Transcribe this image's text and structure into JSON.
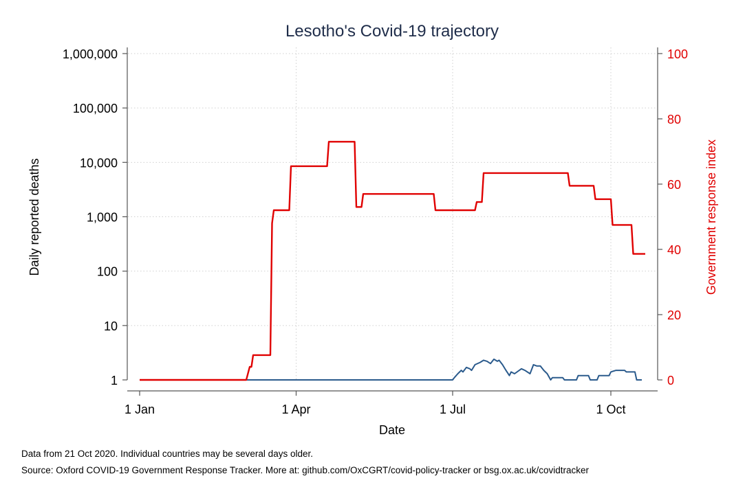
{
  "chart_data": {
    "type": "line",
    "title": "Lesotho's Covid-19 trajectory",
    "xlabel": "Date",
    "ylabel_left": "Daily reported deaths",
    "ylabel_right": "Government response index",
    "x_ticks": [
      {
        "day": 0,
        "label": "1 Jan"
      },
      {
        "day": 91,
        "label": "1 Apr"
      },
      {
        "day": 182,
        "label": "1 Jul"
      },
      {
        "day": 274,
        "label": "1 Oct"
      }
    ],
    "x_range_days": [
      0,
      294
    ],
    "left_axis": {
      "scale": "log10",
      "range": [
        1,
        1000000
      ],
      "ticks": [
        {
          "value": 1,
          "label": "1"
        },
        {
          "value": 10,
          "label": "10"
        },
        {
          "value": 100,
          "label": "100"
        },
        {
          "value": 1000,
          "label": "1,000"
        },
        {
          "value": 10000,
          "label": "10,000"
        },
        {
          "value": 100000,
          "label": "100,000"
        },
        {
          "value": 1000000,
          "label": "1,000,000"
        }
      ]
    },
    "right_axis": {
      "scale": "linear",
      "range": [
        0,
        100
      ],
      "ticks": [
        {
          "value": 0,
          "label": "0"
        },
        {
          "value": 20,
          "label": "20"
        },
        {
          "value": 40,
          "label": "40"
        },
        {
          "value": 60,
          "label": "60"
        },
        {
          "value": 80,
          "label": "80"
        },
        {
          "value": 100,
          "label": "100"
        }
      ]
    },
    "grid": true,
    "series": [
      {
        "name": "Daily reported deaths",
        "axis": "left",
        "color": "#2a5a8c",
        "points": [
          [
            62,
            1
          ],
          [
            182,
            1
          ],
          [
            183,
            1.1
          ],
          [
            185,
            1.3
          ],
          [
            187,
            1.5
          ],
          [
            188,
            1.4
          ],
          [
            190,
            1.7
          ],
          [
            192,
            1.6
          ],
          [
            193,
            1.5
          ],
          [
            195,
            1.9
          ],
          [
            198,
            2.1
          ],
          [
            200,
            2.3
          ],
          [
            202,
            2.2
          ],
          [
            204,
            2.0
          ],
          [
            206,
            2.4
          ],
          [
            208,
            2.2
          ],
          [
            209,
            2.3
          ],
          [
            211,
            1.9
          ],
          [
            213,
            1.5
          ],
          [
            215,
            1.2
          ],
          [
            216,
            1.4
          ],
          [
            218,
            1.3
          ],
          [
            222,
            1.6
          ],
          [
            224,
            1.5
          ],
          [
            227,
            1.3
          ],
          [
            229,
            1.9
          ],
          [
            231,
            1.8
          ],
          [
            233,
            1.8
          ],
          [
            235,
            1.5
          ],
          [
            237,
            1.3
          ],
          [
            239,
            1.0
          ],
          [
            240,
            1.1
          ],
          [
            246,
            1.1
          ],
          [
            247,
            1.0
          ],
          [
            254,
            1.0
          ],
          [
            255,
            1.2
          ],
          [
            261,
            1.2
          ],
          [
            262,
            1.0
          ],
          [
            266,
            1.0
          ],
          [
            267,
            1.2
          ],
          [
            273,
            1.2
          ],
          [
            274,
            1.4
          ],
          [
            277,
            1.5
          ],
          [
            282,
            1.5
          ],
          [
            283,
            1.4
          ],
          [
            288,
            1.4
          ],
          [
            289,
            1.0
          ],
          [
            292,
            1.0
          ]
        ]
      },
      {
        "name": "Government response index",
        "axis": "right",
        "color": "#e00000",
        "points": [
          [
            0,
            0
          ],
          [
            62,
            0
          ],
          [
            63,
            2
          ],
          [
            64,
            4
          ],
          [
            65,
            4
          ],
          [
            66,
            7.6
          ],
          [
            76,
            7.6
          ],
          [
            77,
            48
          ],
          [
            78,
            52
          ],
          [
            87,
            52
          ],
          [
            88,
            65.5
          ],
          [
            109,
            65.5
          ],
          [
            110,
            73
          ],
          [
            125,
            73
          ],
          [
            126,
            53
          ],
          [
            129,
            53
          ],
          [
            130,
            57
          ],
          [
            171,
            57
          ],
          [
            172,
            52
          ],
          [
            195,
            52
          ],
          [
            196,
            54.5
          ],
          [
            199,
            54.5
          ],
          [
            200,
            63.4
          ],
          [
            249,
            63.4
          ],
          [
            250,
            59.5
          ],
          [
            264,
            59.5
          ],
          [
            265,
            55.4
          ],
          [
            274,
            55.4
          ],
          [
            275,
            47.5
          ],
          [
            286,
            47.5
          ],
          [
            287,
            38.6
          ],
          [
            294,
            38.6
          ]
        ]
      }
    ]
  },
  "footnotes": {
    "line1": "Data from 21 Oct 2020. Individual countries may be several days older.",
    "line2": "Source: Oxford COVID-19 Government Response Tracker. More at: github.com/OxCGRT/covid-policy-tracker or bsg.ox.ac.uk/covidtracker"
  }
}
